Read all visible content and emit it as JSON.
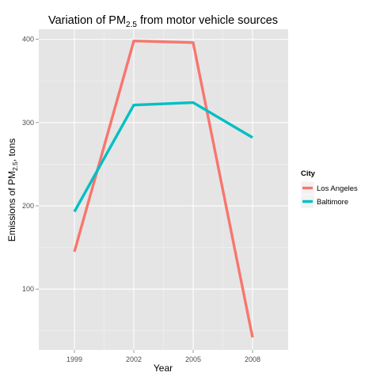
{
  "chart_data": {
    "type": "line",
    "title_main": "Variation of PM",
    "title_sub": "2.5",
    "title_rest": " from motor vehicle sources",
    "xlabel": "Year",
    "ylabel_main": "Emissions of PM",
    "ylabel_sub": "2.5",
    "ylabel_rest": ", tons",
    "categories": [
      "1999",
      "2002",
      "2005",
      "2008"
    ],
    "yticks": [
      100,
      200,
      300,
      400
    ],
    "ylim": [
      27,
      412
    ],
    "grid": true,
    "legend_position": "right",
    "legend_title": "City",
    "series": [
      {
        "name": "Los Angeles",
        "color": "#F8766D",
        "values": [
          145,
          398,
          396,
          42
        ]
      },
      {
        "name": "Baltimore",
        "color": "#00BFC4",
        "values": [
          193,
          321,
          324,
          282
        ]
      }
    ]
  }
}
